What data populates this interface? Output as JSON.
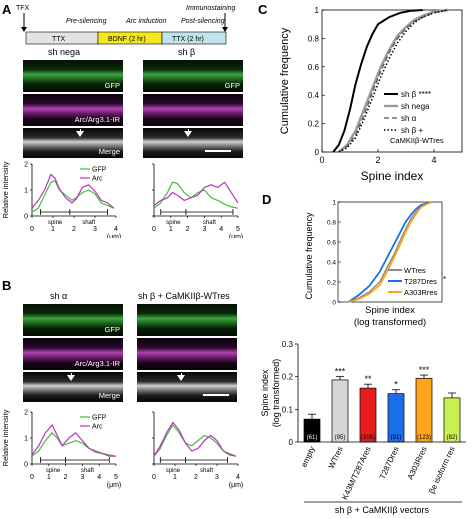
{
  "panel_labels": {
    "a": "A",
    "b": "B",
    "c": "C",
    "d": "D"
  },
  "colors": {
    "gfp": "#3fbf3f",
    "arc": "#c030c0",
    "ttx": "#e3e3e3",
    "bdnf": "#f4e81c",
    "ttx2": "#bfe4ec",
    "wtres": "#d6d6d6",
    "k43m": "#e81c1c",
    "t287": "#1c6ee8",
    "a303": "#ffa31a",
    "be": "#c8f050",
    "empty": "#000000"
  },
  "timeline": {
    "tfx": "TFX",
    "phases": [
      "Pre-silencing",
      "Arc induction",
      "Post-silencing"
    ],
    "boxes": [
      "TTX",
      "BDNF (2 hr)",
      "TTX (2 hr)"
    ],
    "immuno": "Immunostaining"
  },
  "panelA": {
    "titles": [
      "sh nega",
      "sh β"
    ],
    "rows": [
      "GFP",
      "Arc/Arg3.1-IR",
      "Merge"
    ]
  },
  "panelB": {
    "titles": [
      "sh α",
      "sh β + CaMKIIβ-WTres"
    ],
    "rows": [
      "GFP",
      "Arc/Arg3.1-IR",
      "Merge"
    ]
  },
  "profile": {
    "ylabel": "Relative intensity",
    "legend": [
      "GFP",
      "Arc"
    ],
    "region": [
      "spine",
      "shaft"
    ],
    "unit": "(μm)",
    "yticks": [
      "0",
      "1",
      "2"
    ]
  },
  "chart_data": [
    {
      "id": "A-left",
      "type": "line",
      "xlabel": "(μm)",
      "ylabel": "Relative intensity",
      "xlim": [
        0,
        4
      ],
      "ylim": [
        0,
        2
      ],
      "series": [
        {
          "name": "GFP",
          "x": [
            0,
            0.3,
            0.6,
            0.9,
            1.1,
            1.3,
            1.6,
            1.9,
            2.1,
            2.4,
            2.7,
            3.0,
            3.3,
            3.6,
            3.9
          ],
          "y": [
            0.15,
            0.3,
            0.8,
            1.3,
            1.35,
            1.0,
            0.8,
            0.6,
            0.7,
            0.9,
            1.0,
            0.85,
            0.5,
            0.4,
            0.3
          ]
        },
        {
          "name": "Arc",
          "x": [
            0,
            0.3,
            0.6,
            0.9,
            1.1,
            1.3,
            1.6,
            1.9,
            2.1,
            2.4,
            2.7,
            3.0,
            3.3,
            3.6,
            3.9
          ],
          "y": [
            0.3,
            0.6,
            1.0,
            1.6,
            1.45,
            1.05,
            0.7,
            0.5,
            0.65,
            1.1,
            1.2,
            0.95,
            0.6,
            0.5,
            0.3
          ]
        }
      ]
    },
    {
      "id": "A-right",
      "type": "line",
      "xlabel": "(μm)",
      "ylabel": "Relative intensity",
      "xlim": [
        0,
        5
      ],
      "ylim": [
        0,
        2
      ],
      "series": [
        {
          "name": "GFP",
          "x": [
            0,
            0.4,
            0.8,
            1.1,
            1.4,
            1.8,
            2.2,
            2.6,
            3.0,
            3.4,
            3.8,
            4.2,
            4.6,
            5.0
          ],
          "y": [
            0.3,
            0.5,
            0.9,
            1.3,
            1.25,
            0.9,
            0.7,
            0.9,
            1.0,
            0.7,
            0.6,
            0.45,
            0.35,
            0.3
          ]
        },
        {
          "name": "Arc",
          "x": [
            0,
            0.4,
            0.8,
            1.1,
            1.4,
            1.8,
            2.2,
            2.6,
            3.0,
            3.4,
            3.8,
            4.2,
            4.6,
            5.0
          ],
          "y": [
            0.4,
            0.6,
            0.7,
            0.9,
            0.8,
            0.6,
            0.7,
            0.8,
            1.1,
            1.2,
            1.1,
            1.3,
            0.9,
            0.5
          ]
        }
      ]
    },
    {
      "id": "B-left",
      "type": "line",
      "xlabel": "(μm)",
      "ylabel": "Relative intensity",
      "xlim": [
        0,
        5
      ],
      "ylim": [
        0,
        2
      ],
      "series": [
        {
          "name": "GFP",
          "x": [
            0,
            0.4,
            0.8,
            1.2,
            1.5,
            1.8,
            2.2,
            2.6,
            3.0,
            3.4,
            3.8,
            4.2,
            4.6,
            5.0
          ],
          "y": [
            0.3,
            0.5,
            0.9,
            1.2,
            1.0,
            0.7,
            0.8,
            0.9,
            0.8,
            0.6,
            0.45,
            0.4,
            0.35,
            0.3
          ]
        },
        {
          "name": "Arc",
          "x": [
            0,
            0.4,
            0.8,
            1.2,
            1.5,
            1.8,
            2.2,
            2.6,
            3.0,
            3.4,
            3.8,
            4.2,
            4.6,
            5.0
          ],
          "y": [
            0.35,
            0.7,
            1.2,
            1.5,
            1.1,
            0.7,
            1.0,
            1.2,
            0.9,
            0.6,
            0.5,
            0.4,
            0.3,
            0.3
          ]
        }
      ]
    },
    {
      "id": "B-right",
      "type": "line",
      "xlabel": "(μm)",
      "ylabel": "Relative intensity",
      "xlim": [
        0,
        4
      ],
      "ylim": [
        0,
        2
      ],
      "series": [
        {
          "name": "GFP",
          "x": [
            0,
            0.3,
            0.6,
            0.9,
            1.2,
            1.5,
            1.8,
            2.1,
            2.4,
            2.7,
            3.0,
            3.3,
            3.6,
            3.9
          ],
          "y": [
            0.3,
            0.6,
            1.1,
            1.5,
            1.2,
            0.8,
            0.7,
            0.9,
            1.1,
            1.0,
            0.8,
            0.5,
            0.4,
            0.3
          ]
        },
        {
          "name": "Arc",
          "x": [
            0,
            0.3,
            0.6,
            0.9,
            1.2,
            1.5,
            1.8,
            2.1,
            2.4,
            2.7,
            3.0,
            3.3,
            3.6,
            3.9
          ],
          "y": [
            0.3,
            0.7,
            1.2,
            1.6,
            1.3,
            0.8,
            0.5,
            0.6,
            0.9,
            1.1,
            0.9,
            0.5,
            0.35,
            0.3
          ]
        }
      ]
    },
    {
      "id": "C",
      "type": "line",
      "xlabel": "Spine index",
      "ylabel": "Cumulative frequency",
      "xlim": [
        0,
        5
      ],
      "ylim": [
        0,
        1
      ],
      "series": [
        {
          "name": "sh β ****",
          "x": [
            0.4,
            0.6,
            0.8,
            1.0,
            1.2,
            1.4,
            1.6,
            1.8,
            2.0,
            2.4,
            2.8,
            3.2,
            3.6
          ],
          "y": [
            0,
            0.05,
            0.15,
            0.3,
            0.48,
            0.62,
            0.74,
            0.83,
            0.9,
            0.95,
            0.98,
            0.995,
            1
          ]
        },
        {
          "name": "sh nega",
          "x": [
            0.6,
            0.9,
            1.2,
            1.5,
            1.8,
            2.1,
            2.4,
            2.7,
            3.0,
            3.3,
            3.6,
            4.0,
            4.5
          ],
          "y": [
            0,
            0.05,
            0.15,
            0.3,
            0.45,
            0.6,
            0.72,
            0.82,
            0.88,
            0.93,
            0.96,
            0.99,
            1
          ]
        },
        {
          "name": "sh α",
          "x": [
            0.6,
            0.9,
            1.2,
            1.5,
            1.8,
            2.1,
            2.4,
            2.7,
            3.0,
            3.3,
            3.6,
            4.0,
            4.5
          ],
          "y": [
            0,
            0.04,
            0.12,
            0.26,
            0.42,
            0.57,
            0.7,
            0.8,
            0.87,
            0.92,
            0.95,
            0.98,
            1
          ]
        },
        {
          "name": "sh β + CaMKIIβ-WTres",
          "x": [
            0.6,
            0.9,
            1.2,
            1.5,
            1.8,
            2.1,
            2.4,
            2.7,
            3.0,
            3.3,
            3.6,
            4.0,
            4.5
          ],
          "y": [
            0,
            0.03,
            0.1,
            0.23,
            0.38,
            0.53,
            0.66,
            0.77,
            0.85,
            0.91,
            0.95,
            0.98,
            1
          ]
        }
      ]
    },
    {
      "id": "D-top",
      "type": "line",
      "xlabel": "Spine index (log transformed)",
      "ylabel": "Cumulative frequency",
      "xlim": [
        -0.4,
        0.6
      ],
      "ylim": [
        0,
        1
      ],
      "series": [
        {
          "name": "WTres",
          "x": [
            -0.3,
            -0.2,
            -0.1,
            0,
            0.05,
            0.1,
            0.15,
            0.2,
            0.25,
            0.3,
            0.35,
            0.4,
            0.5
          ],
          "y": [
            0,
            0.04,
            0.1,
            0.2,
            0.3,
            0.4,
            0.5,
            0.62,
            0.73,
            0.83,
            0.9,
            0.96,
            1
          ]
        },
        {
          "name": "T287Dres",
          "x": [
            -0.3,
            -0.2,
            -0.1,
            0,
            0.05,
            0.1,
            0.15,
            0.2,
            0.25,
            0.3,
            0.35,
            0.4,
            0.5
          ],
          "y": [
            0,
            0.07,
            0.16,
            0.3,
            0.4,
            0.5,
            0.6,
            0.7,
            0.8,
            0.87,
            0.93,
            0.97,
            1
          ]
        },
        {
          "name": "A303Rres",
          "x": [
            -0.3,
            -0.2,
            -0.1,
            0,
            0.05,
            0.1,
            0.15,
            0.2,
            0.25,
            0.3,
            0.35,
            0.4,
            0.5
          ],
          "y": [
            0,
            0.03,
            0.08,
            0.17,
            0.26,
            0.36,
            0.47,
            0.58,
            0.7,
            0.8,
            0.88,
            0.95,
            1
          ]
        }
      ]
    },
    {
      "id": "D-bottom",
      "type": "bar",
      "xlabel": "sh β + CaMKIIβ vectors",
      "ylabel": "Spine index (log transformed)",
      "ylim": [
        0,
        0.3
      ],
      "categories": [
        "empty",
        "WTres",
        "K43M/T287Ares",
        "T287Dres",
        "A303Rres",
        "βe isoform res"
      ],
      "values": [
        0.07,
        0.19,
        0.165,
        0.148,
        0.195,
        0.135
      ],
      "errors": [
        0.015,
        0.01,
        0.012,
        0.012,
        0.01,
        0.015
      ],
      "n": [
        "(61)",
        "(95)",
        "(105)",
        "(91)",
        "(123)",
        "(82)"
      ],
      "stars": [
        "",
        "***",
        "**",
        "*",
        "***",
        ""
      ],
      "yticks": [
        "0",
        "0.1",
        "0.2",
        "0.3"
      ]
    }
  ],
  "panelC": {
    "yticks": [
      "0",
      "0.2",
      "0.4",
      "0.6",
      "0.8",
      "1"
    ],
    "xticks": [
      "0",
      "2",
      "4"
    ]
  },
  "panelD": {
    "topticks": [
      "0",
      "0.2",
      "0.4",
      "0.6",
      "0.8",
      "1"
    ],
    "t287star": "*"
  }
}
